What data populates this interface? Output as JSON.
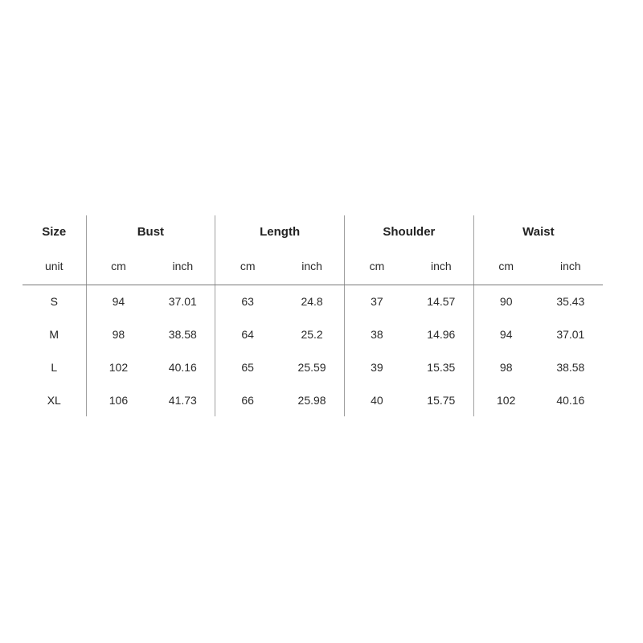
{
  "colors": {
    "background": "#ffffff",
    "text": "#2b2b2b",
    "bold_text": "#222222",
    "vertical_divider": "#a0a0a0",
    "horizontal_rule": "#7a7a7a"
  },
  "chart_data": {
    "type": "table",
    "column_groups": [
      {
        "label": "Size"
      },
      {
        "label": "Bust"
      },
      {
        "label": "Length"
      },
      {
        "label": "Shoulder"
      },
      {
        "label": "Waist"
      }
    ],
    "unit_row": [
      "unit",
      "cm",
      "inch",
      "cm",
      "inch",
      "cm",
      "inch",
      "cm",
      "inch"
    ],
    "rows": [
      [
        "S",
        "94",
        "37.01",
        "63",
        "24.8",
        "37",
        "14.57",
        "90",
        "35.43"
      ],
      [
        "M",
        "98",
        "38.58",
        "64",
        "25.2",
        "38",
        "14.96",
        "94",
        "37.01"
      ],
      [
        "L",
        "102",
        "40.16",
        "65",
        "25.59",
        "39",
        "15.35",
        "98",
        "38.58"
      ],
      [
        "XL",
        "106",
        "41.73",
        "66",
        "25.98",
        "40",
        "15.75",
        "102",
        "40.16"
      ]
    ]
  }
}
